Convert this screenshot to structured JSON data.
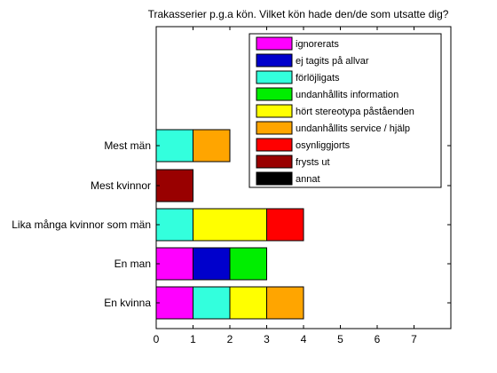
{
  "chart_data": {
    "type": "bar",
    "orientation": "horizontal",
    "stacked": true,
    "title": "Trakasserier p.g.a kön. Vilket kön hade den/de som utsatte dig?",
    "xlabel": "",
    "ylabel": "",
    "xlim": [
      0,
      8
    ],
    "x_ticks": [
      "0",
      "1",
      "2",
      "3",
      "4",
      "5",
      "6",
      "7"
    ],
    "grid": false,
    "legend_position": "top-right",
    "categories": [
      "En kvinna",
      "En man",
      "Lika många kvinnor som män",
      "Mest kvinnor",
      "Mest män"
    ],
    "series": [
      {
        "name": "ignorerats",
        "color": "#ff00ff",
        "values": [
          1,
          1,
          0,
          0,
          0
        ]
      },
      {
        "name": "ej tagits på allvar",
        "color": "#0000cc",
        "values": [
          0,
          1,
          0,
          0,
          0
        ]
      },
      {
        "name": "förlöjligats",
        "color": "#33ffdd",
        "values": [
          1,
          0,
          1,
          0,
          1
        ]
      },
      {
        "name": "undanhållits information",
        "color": "#00ee00",
        "values": [
          0,
          1,
          0,
          0,
          0
        ]
      },
      {
        "name": "hört stereotypa påståenden",
        "color": "#ffff00",
        "values": [
          1,
          0,
          2,
          0,
          0
        ]
      },
      {
        "name": "undanhållits service / hjälp",
        "color": "#ffa500",
        "values": [
          1,
          0,
          0,
          0,
          1
        ]
      },
      {
        "name": "osynliggjorts",
        "color": "#ff0000",
        "values": [
          0,
          0,
          1,
          0,
          0
        ]
      },
      {
        "name": "frysts ut",
        "color": "#990000",
        "values": [
          0,
          0,
          0,
          1,
          0
        ]
      },
      {
        "name": "annat",
        "color": "#000000",
        "values": [
          0,
          0,
          0,
          0,
          0
        ]
      }
    ]
  }
}
